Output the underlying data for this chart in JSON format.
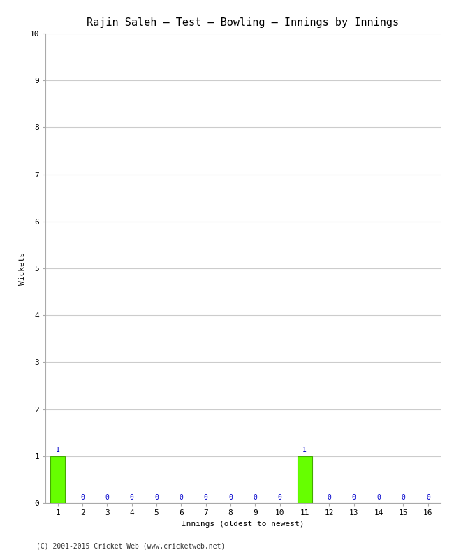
{
  "title": "Rajin Saleh – Test – Bowling – Innings by Innings",
  "xlabel": "Innings (oldest to newest)",
  "ylabel": "Wickets",
  "footnote": "(C) 2001-2015 Cricket Web (www.cricketweb.net)",
  "innings": [
    1,
    2,
    3,
    4,
    5,
    6,
    7,
    8,
    9,
    10,
    11,
    12,
    13,
    14,
    15,
    16
  ],
  "wickets": [
    1,
    0,
    0,
    0,
    0,
    0,
    0,
    0,
    0,
    0,
    1,
    0,
    0,
    0,
    0,
    0
  ],
  "bar_color": "#66ff00",
  "bar_edge_color": "#44aa00",
  "zero_color": "#0000cc",
  "ylim": [
    0,
    10
  ],
  "yticks": [
    0,
    1,
    2,
    3,
    4,
    5,
    6,
    7,
    8,
    9,
    10
  ],
  "background_color": "#ffffff",
  "grid_color": "#cccccc",
  "title_fontsize": 11,
  "axis_label_fontsize": 8,
  "tick_fontsize": 8,
  "annotation_fontsize": 7,
  "footnote_fontsize": 7
}
